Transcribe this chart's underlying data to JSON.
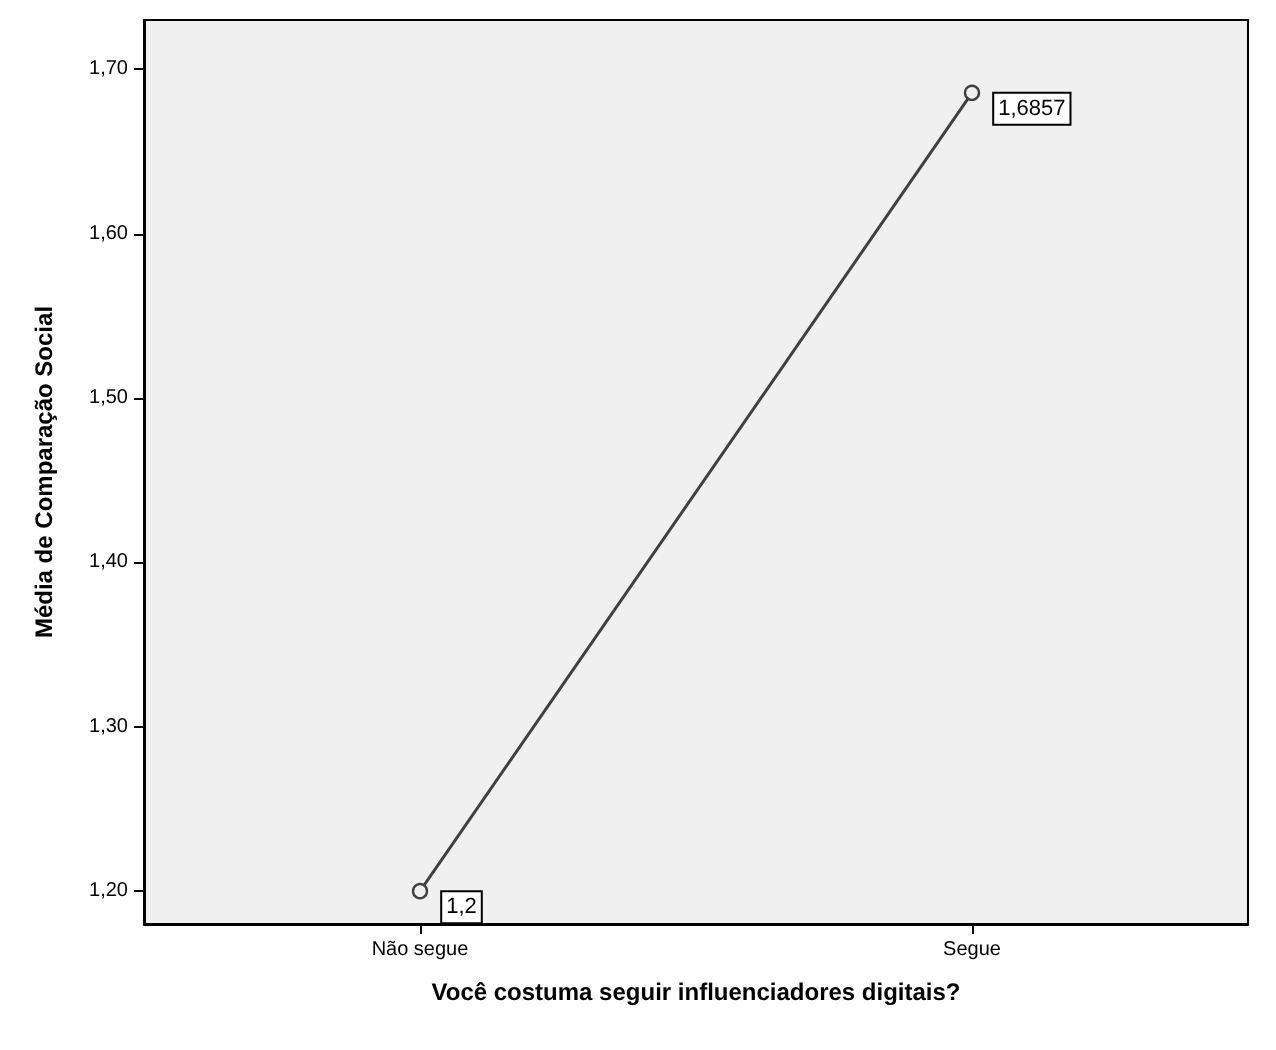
{
  "chart_data": {
    "type": "line",
    "xlabel": "Você costuma seguir influenciadores digitais?",
    "ylabel": "Média de Comparação Social",
    "categories": [
      "Não segue",
      "Segue"
    ],
    "series": [
      {
        "color": "#404040",
        "values": [
          1.2,
          1.6857
        ],
        "value_labels": [
          "1,2",
          "1,6857"
        ]
      }
    ],
    "ylim": [
      1.18,
      1.73
    ],
    "yticks": [
      {
        "value": 1.2,
        "label": "1,20"
      },
      {
        "value": 1.3,
        "label": "1,30"
      },
      {
        "value": 1.4,
        "label": "1,40"
      },
      {
        "value": 1.5,
        "label": "1,50"
      },
      {
        "value": 1.6,
        "label": "1,60"
      },
      {
        "value": 1.7,
        "label": "1,70"
      }
    ],
    "grid": false,
    "marker": "circle",
    "line_style": "solid"
  }
}
